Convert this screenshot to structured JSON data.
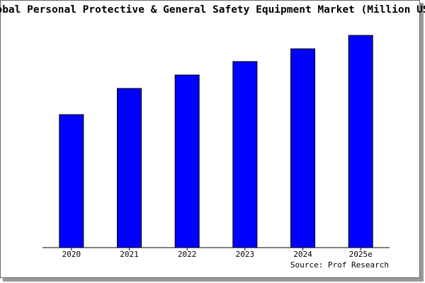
{
  "chart_data": {
    "type": "bar",
    "title": "Global Personal Protective & General Safety Equipment Market (Million USD)",
    "categories": [
      "2020",
      "2021",
      "2022",
      "2023",
      "2024",
      "2025e"
    ],
    "values": [
      188,
      225,
      244,
      263,
      281,
      300
    ],
    "color": "#0000ff",
    "ylim": [
      0,
      305
    ],
    "source": "Source: Prof Research"
  }
}
